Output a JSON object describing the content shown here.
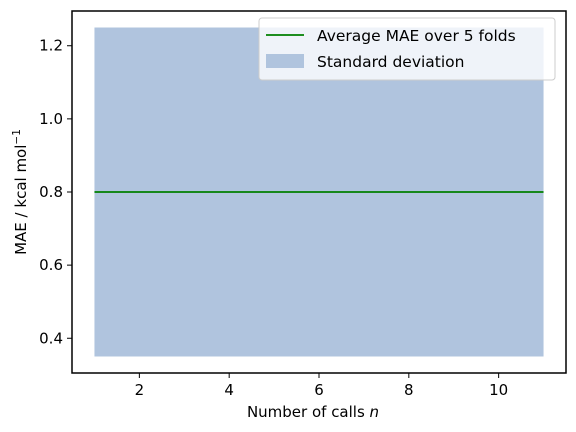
{
  "chart_data": {
    "type": "line",
    "x": [
      1,
      2,
      3,
      4,
      5,
      6,
      7,
      8,
      9,
      10,
      11
    ],
    "series": [
      {
        "name": "Average MAE over 5 folds",
        "values": [
          0.8,
          0.8,
          0.8,
          0.8,
          0.8,
          0.8,
          0.8,
          0.8,
          0.8,
          0.8,
          0.8
        ],
        "color": "#008000"
      }
    ],
    "band": {
      "name": "Standard deviation",
      "lower": [
        0.35,
        0.35,
        0.35,
        0.35,
        0.35,
        0.35,
        0.35,
        0.35,
        0.35,
        0.35,
        0.35
      ],
      "upper": [
        1.25,
        1.25,
        1.25,
        1.25,
        1.25,
        1.25,
        1.25,
        1.25,
        1.25,
        1.25,
        1.25
      ],
      "color": "#b0c4de"
    },
    "xlabel_prefix": "Number of calls ",
    "xlabel_var": "n",
    "ylabel_main": "MAE / kcal mol",
    "ylabel_sup": "−1",
    "xlim": [
      0.5,
      11.5
    ],
    "ylim": [
      0.305,
      1.295
    ],
    "xticks": [
      2,
      4,
      6,
      8,
      10
    ],
    "yticks": [
      0.4,
      0.6,
      0.8,
      1.0,
      1.2
    ],
    "xtick_labels": [
      "2",
      "4",
      "6",
      "8",
      "10"
    ],
    "ytick_labels": [
      "0.4",
      "0.6",
      "0.8",
      "1.0",
      "1.2"
    ],
    "legend_position": "top-right",
    "grid": false
  }
}
